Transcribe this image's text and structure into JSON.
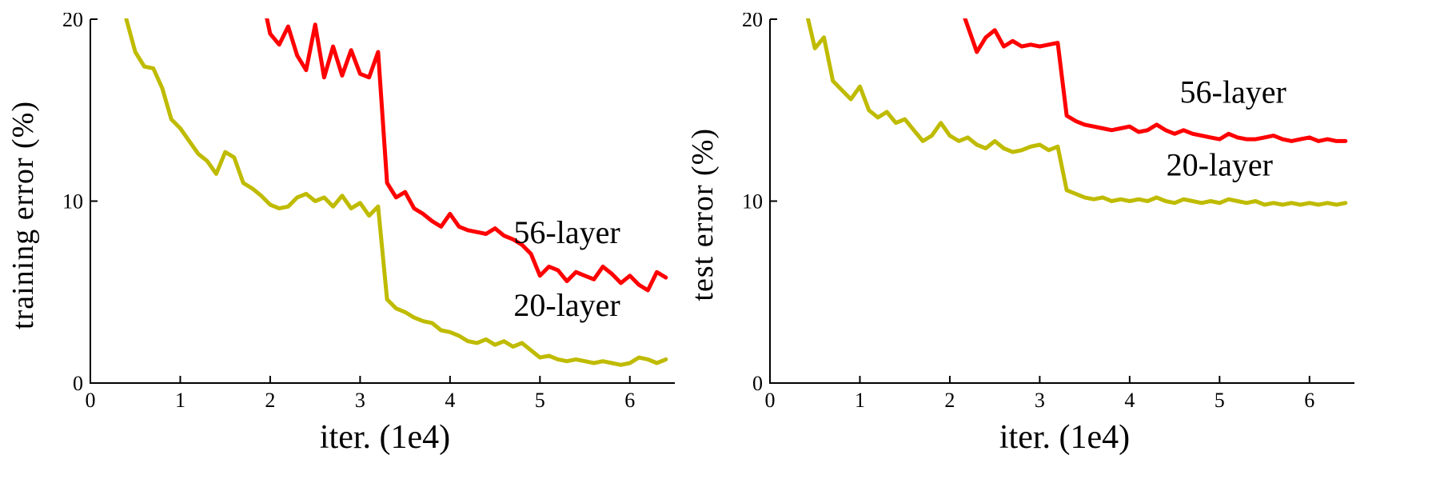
{
  "chart_data": [
    {
      "type": "line",
      "title": "",
      "ylabel": "training error (%)",
      "xlabel": "iter. (1e4)",
      "xlim": [
        0,
        6.5
      ],
      "ylim": [
        0,
        20
      ],
      "xticks": [
        0,
        1,
        2,
        3,
        4,
        5,
        6
      ],
      "yticks": [
        0,
        10,
        20
      ],
      "grid": false,
      "legend_position": "inline-annotations",
      "series": [
        {
          "name": "56-layer",
          "label": "56-layer",
          "color": "#ff0000",
          "x_start": 1.9,
          "x_step": 0.1,
          "label_xy": [
            5.3,
            7.7
          ],
          "y": [
            21.5,
            19.2,
            18.6,
            19.6,
            18.0,
            17.2,
            19.7,
            16.8,
            18.5,
            16.9,
            18.3,
            17.0,
            16.8,
            18.2,
            11.0,
            10.2,
            10.5,
            9.6,
            9.3,
            8.9,
            8.6,
            9.3,
            8.6,
            8.4,
            8.3,
            8.2,
            8.5,
            8.1,
            7.9,
            7.6,
            7.1,
            5.9,
            6.4,
            6.2,
            5.6,
            6.1,
            5.9,
            5.7,
            6.4,
            6.0,
            5.5,
            5.9,
            5.4,
            5.1,
            6.1,
            5.8
          ]
        },
        {
          "name": "20-layer",
          "label": "20-layer",
          "color": "#bfbb00",
          "x_start": 0.4,
          "x_step": 0.1,
          "label_xy": [
            5.3,
            3.7
          ],
          "y": [
            20.0,
            18.2,
            17.4,
            17.3,
            16.2,
            14.5,
            14.0,
            13.3,
            12.6,
            12.2,
            11.5,
            12.7,
            12.4,
            11.0,
            10.7,
            10.3,
            9.8,
            9.6,
            9.7,
            10.2,
            10.4,
            10.0,
            10.2,
            9.7,
            10.3,
            9.6,
            9.9,
            9.2,
            9.7,
            4.6,
            4.1,
            3.9,
            3.6,
            3.4,
            3.3,
            2.9,
            2.8,
            2.6,
            2.3,
            2.2,
            2.4,
            2.1,
            2.3,
            2.0,
            2.2,
            1.8,
            1.4,
            1.5,
            1.3,
            1.2,
            1.3,
            1.2,
            1.1,
            1.2,
            1.1,
            1.0,
            1.1,
            1.4,
            1.3,
            1.1,
            1.3
          ]
        }
      ]
    },
    {
      "type": "line",
      "title": "",
      "ylabel": "test error (%)",
      "xlabel": "iter. (1e4)",
      "xlim": [
        0,
        6.5
      ],
      "ylim": [
        0,
        20
      ],
      "xticks": [
        0,
        1,
        2,
        3,
        4,
        5,
        6
      ],
      "yticks": [
        0,
        10,
        20
      ],
      "grid": false,
      "legend_position": "inline-annotations",
      "series": [
        {
          "name": "56-layer",
          "label": "56-layer",
          "color": "#ff0000",
          "x_start": 2.1,
          "x_step": 0.1,
          "label_xy": [
            5.15,
            15.4
          ],
          "y": [
            21.0,
            19.6,
            18.2,
            19.0,
            19.4,
            18.5,
            18.8,
            18.5,
            18.6,
            18.5,
            18.6,
            18.7,
            14.7,
            14.4,
            14.2,
            14.1,
            14.0,
            13.9,
            14.0,
            14.1,
            13.8,
            13.9,
            14.2,
            13.9,
            13.7,
            13.9,
            13.7,
            13.6,
            13.5,
            13.4,
            13.7,
            13.5,
            13.4,
            13.4,
            13.5,
            13.6,
            13.4,
            13.3,
            13.4,
            13.5,
            13.3,
            13.4,
            13.3,
            13.3
          ]
        },
        {
          "name": "20-layer",
          "label": "20-layer",
          "color": "#bfbb00",
          "x_start": 0.4,
          "x_step": 0.1,
          "label_xy": [
            5.0,
            11.4
          ],
          "y": [
            20.5,
            18.4,
            19.0,
            16.6,
            16.1,
            15.6,
            16.3,
            15.0,
            14.6,
            14.9,
            14.3,
            14.5,
            13.9,
            13.3,
            13.6,
            14.3,
            13.6,
            13.3,
            13.5,
            13.1,
            12.9,
            13.3,
            12.9,
            12.7,
            12.8,
            13.0,
            13.1,
            12.8,
            13.0,
            10.6,
            10.4,
            10.2,
            10.1,
            10.2,
            10.0,
            10.1,
            10.0,
            10.1,
            10.0,
            10.2,
            10.0,
            9.9,
            10.1,
            10.0,
            9.9,
            10.0,
            9.9,
            10.1,
            10.0,
            9.9,
            10.0,
            9.8,
            9.9,
            9.8,
            9.9,
            9.8,
            9.9,
            9.8,
            9.9,
            9.8,
            9.9
          ]
        }
      ]
    }
  ]
}
